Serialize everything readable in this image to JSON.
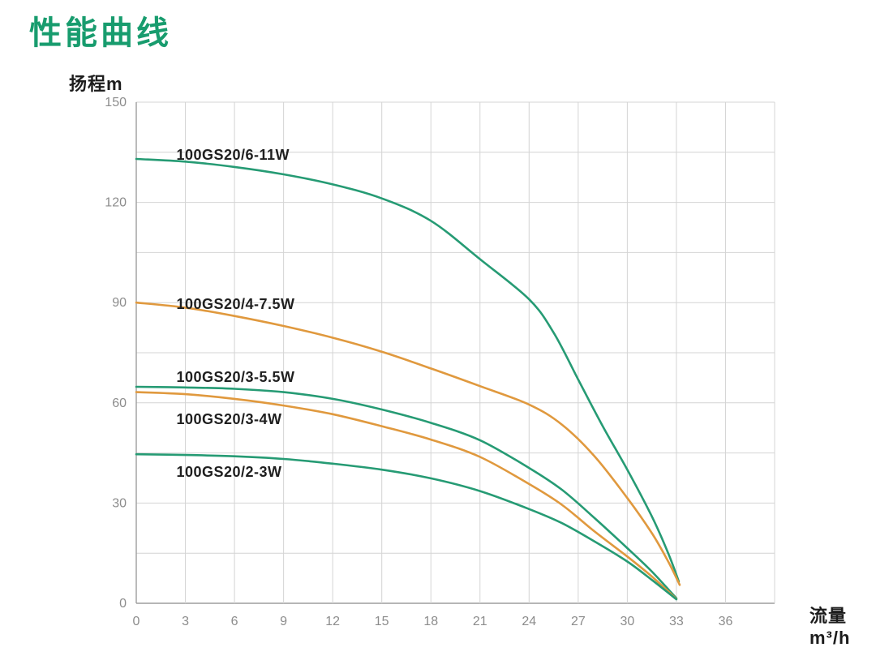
{
  "page": {
    "title": "性能曲线",
    "title_color": "#189c6e"
  },
  "chart_data": {
    "type": "line",
    "title": "性能曲线",
    "xlabel": "流量m³/h",
    "ylabel": "扬程m",
    "xlim": [
      0,
      39
    ],
    "ylim": [
      0,
      150
    ],
    "xticks": [
      0,
      3,
      6,
      9,
      12,
      15,
      18,
      21,
      24,
      27,
      30,
      33,
      36
    ],
    "yticks": [
      0,
      30,
      60,
      90,
      120,
      150
    ],
    "x_grid_step": 3,
    "y_grid_step": 15,
    "grid": true,
    "legend_position": "labels-on-curves",
    "colors": {
      "green_curve": "#269b74",
      "orange_curve": "#e0993e",
      "grid_line": "#d4d4d4",
      "axis_line": "#9e9e9e",
      "tick_text": "#8c8c8c",
      "label_text": "#1f1f1f"
    },
    "series": [
      {
        "name": "100GS20/6-11W",
        "color": "green_curve",
        "label_pos": [
          2.45,
          134.2
        ],
        "points": [
          [
            0,
            133
          ],
          [
            3,
            132.2
          ],
          [
            6,
            130.6
          ],
          [
            9,
            128.4
          ],
          [
            12,
            125.4
          ],
          [
            15,
            121.2
          ],
          [
            18,
            114.5
          ],
          [
            21,
            103
          ],
          [
            24,
            91
          ],
          [
            25.5,
            81
          ],
          [
            27,
            67
          ],
          [
            28.5,
            53
          ],
          [
            30,
            40
          ],
          [
            31.5,
            26
          ],
          [
            32.5,
            15
          ],
          [
            33.15,
            6.5
          ]
        ]
      },
      {
        "name": "100GS20/4-7.5W",
        "color": "orange_curve",
        "label_pos": [
          2.45,
          89.6
        ],
        "points": [
          [
            0,
            90
          ],
          [
            3,
            88.5
          ],
          [
            6,
            86
          ],
          [
            9,
            83
          ],
          [
            12,
            79.5
          ],
          [
            15,
            75.3
          ],
          [
            18,
            70.3
          ],
          [
            21,
            65
          ],
          [
            24,
            59.5
          ],
          [
            26,
            53.5
          ],
          [
            28,
            44
          ],
          [
            30,
            31.5
          ],
          [
            31.5,
            21
          ],
          [
            32.5,
            12.5
          ],
          [
            33.2,
            5.5
          ]
        ]
      },
      {
        "name": "100GS20/3-5.5W",
        "color": "green_curve",
        "label_pos": [
          2.45,
          67.7
        ],
        "points": [
          [
            0,
            64.8
          ],
          [
            3,
            64.6
          ],
          [
            6,
            64.2
          ],
          [
            9,
            63.2
          ],
          [
            12,
            61.2
          ],
          [
            15,
            58
          ],
          [
            18,
            54
          ],
          [
            21,
            48.8
          ],
          [
            24,
            40.5
          ],
          [
            26,
            34
          ],
          [
            28,
            25.5
          ],
          [
            30,
            16.5
          ],
          [
            31.5,
            9.5
          ],
          [
            33,
            1.5
          ]
        ]
      },
      {
        "name": "100GS20/3-4W",
        "color": "orange_curve",
        "label_pos": [
          2.45,
          55.1
        ],
        "points": [
          [
            0,
            63.2
          ],
          [
            3,
            62.6
          ],
          [
            6,
            61.2
          ],
          [
            9,
            59.2
          ],
          [
            12,
            56.6
          ],
          [
            15,
            53
          ],
          [
            18,
            49
          ],
          [
            21,
            43.8
          ],
          [
            24,
            35.7
          ],
          [
            26,
            29.5
          ],
          [
            28,
            21.5
          ],
          [
            30,
            14
          ],
          [
            31.5,
            8
          ],
          [
            33,
            1.3
          ]
        ]
      },
      {
        "name": "100GS20/2-3W",
        "color": "green_curve",
        "label_pos": [
          2.45,
          39.3
        ],
        "points": [
          [
            0,
            44.6
          ],
          [
            3,
            44.4
          ],
          [
            6,
            44
          ],
          [
            9,
            43.2
          ],
          [
            12,
            41.8
          ],
          [
            15,
            40
          ],
          [
            18,
            37.4
          ],
          [
            21,
            33.6
          ],
          [
            24,
            28.2
          ],
          [
            26,
            24
          ],
          [
            28,
            18.5
          ],
          [
            30,
            12.5
          ],
          [
            31.5,
            7
          ],
          [
            33,
            1.2
          ]
        ]
      }
    ]
  }
}
